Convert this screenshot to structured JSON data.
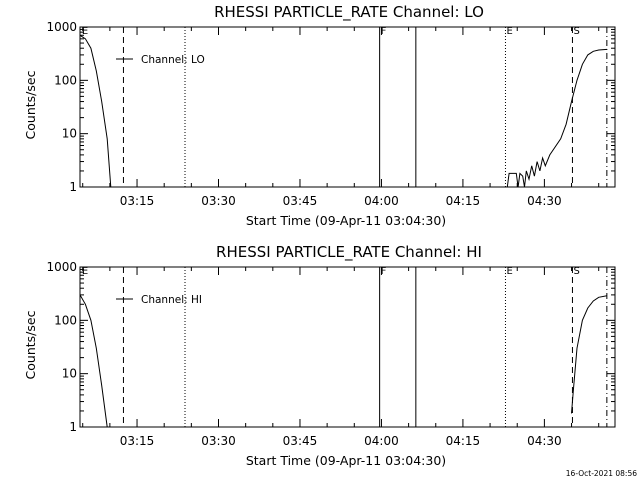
{
  "chart_data": [
    {
      "type": "line",
      "title": "RHESSI PARTICLE_RATE Channel: LO",
      "xlabel": "Start Time (09-Apr-11 03:04:30)",
      "ylabel": "Counts/sec",
      "x_ticks": [
        "03:15",
        "03:30",
        "03:45",
        "04:00",
        "04:15",
        "04:30"
      ],
      "y_ticks": [
        "1",
        "10",
        "100",
        "1000"
      ],
      "y_scale": "log",
      "ylim": [
        1,
        1000
      ],
      "xlim": [
        "03:04:30",
        "04:43:00"
      ],
      "legend": {
        "label": "Channel: LO",
        "placement": "top-left"
      },
      "event_markers": [
        {
          "label": "E",
          "time": "03:04:40",
          "style": "none"
        },
        {
          "label": "",
          "time": "03:12:30",
          "style": "dashed"
        },
        {
          "label": "",
          "time": "03:23:50",
          "style": "dotted"
        },
        {
          "label": "F",
          "time": "03:59:40",
          "style": "solid"
        },
        {
          "label": "",
          "time": "04:06:20",
          "style": "solid"
        },
        {
          "label": "E",
          "time": "04:22:50",
          "style": "dotted"
        },
        {
          "label": "S",
          "time": "04:35:10",
          "style": "dashed"
        },
        {
          "label": "",
          "time": "04:41:30",
          "style": "dashdot"
        }
      ],
      "series": [
        {
          "name": "Channel: LO",
          "segments": [
            [
              [
                "03:04:30",
                700
              ],
              [
                "03:05:30",
                600
              ],
              [
                "03:06:30",
                400
              ],
              [
                "03:07:30",
                150
              ],
              [
                "03:08:30",
                40
              ],
              [
                "03:09:30",
                8
              ],
              [
                "03:10:10",
                1
              ]
            ],
            [
              [
                "04:23:10",
                1
              ],
              [
                "04:23:30",
                1.8
              ],
              [
                "04:24:50",
                1.8
              ],
              [
                "04:25:10",
                1
              ],
              [
                "04:25:30",
                1.8
              ],
              [
                "04:26:00",
                1.6
              ],
              [
                "04:26:20",
                1
              ],
              [
                "04:26:40",
                2
              ],
              [
                "04:27:10",
                1.4
              ],
              [
                "04:27:40",
                2.5
              ],
              [
                "04:28:10",
                1.6
              ],
              [
                "04:28:40",
                3
              ],
              [
                "04:29:10",
                2
              ],
              [
                "04:29:40",
                3.5
              ],
              [
                "04:30:10",
                2.5
              ],
              [
                "04:31:00",
                4
              ],
              [
                "04:33:00",
                8
              ],
              [
                "04:34:00",
                15
              ],
              [
                "04:35:00",
                40
              ],
              [
                "04:36:00",
                100
              ],
              [
                "04:37:00",
                200
              ],
              [
                "04:38:00",
                300
              ],
              [
                "04:39:00",
                350
              ],
              [
                "04:40:00",
                370
              ],
              [
                "04:41:30",
                380
              ]
            ]
          ]
        }
      ]
    },
    {
      "type": "line",
      "title": "RHESSI PARTICLE_RATE Channel: HI",
      "xlabel": "Start Time (09-Apr-11 03:04:30)",
      "ylabel": "Counts/sec",
      "x_ticks": [
        "03:15",
        "03:30",
        "03:45",
        "04:00",
        "04:15",
        "04:30"
      ],
      "y_ticks": [
        "1",
        "10",
        "100",
        "1000"
      ],
      "y_scale": "log",
      "ylim": [
        1,
        1000
      ],
      "xlim": [
        "03:04:30",
        "04:43:00"
      ],
      "legend": {
        "label": "Channel: HI",
        "placement": "top-left"
      },
      "event_markers": [
        {
          "label": "E",
          "time": "03:04:40",
          "style": "none"
        },
        {
          "label": "",
          "time": "03:12:30",
          "style": "dashed"
        },
        {
          "label": "",
          "time": "03:23:50",
          "style": "dotted"
        },
        {
          "label": "F",
          "time": "03:59:40",
          "style": "solid"
        },
        {
          "label": "",
          "time": "04:06:20",
          "style": "solid"
        },
        {
          "label": "E",
          "time": "04:22:50",
          "style": "dotted"
        },
        {
          "label": "S",
          "time": "04:35:10",
          "style": "dashed"
        },
        {
          "label": "",
          "time": "04:41:30",
          "style": "dashdot"
        }
      ],
      "series": [
        {
          "name": "Channel: HI",
          "segments": [
            [
              [
                "03:04:30",
                300
              ],
              [
                "03:05:30",
                200
              ],
              [
                "03:06:30",
                100
              ],
              [
                "03:07:30",
                30
              ],
              [
                "03:08:30",
                6
              ],
              [
                "03:09:30",
                1
              ]
            ],
            [
              [
                "04:35:00",
                1.8
              ],
              [
                "04:35:20",
                5
              ],
              [
                "04:36:00",
                30
              ],
              [
                "04:37:00",
                100
              ],
              [
                "04:38:00",
                170
              ],
              [
                "04:39:00",
                230
              ],
              [
                "04:40:00",
                270
              ],
              [
                "04:41:30",
                290
              ]
            ]
          ]
        }
      ]
    }
  ],
  "timestamp": "16-Oct-2021 08:56"
}
